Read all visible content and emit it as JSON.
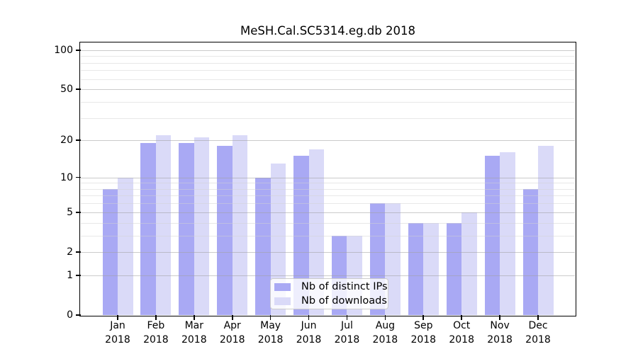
{
  "chart_data": {
    "type": "bar",
    "title": "MeSH.Cal.SC5314.eg.db 2018",
    "categories": [
      "Jan",
      "Feb",
      "Mar",
      "Apr",
      "May",
      "Jun",
      "Jul",
      "Aug",
      "Sep",
      "Oct",
      "Nov",
      "Dec"
    ],
    "category_second_line": "2018",
    "series": [
      {
        "name": "Nb of distinct IPs",
        "color": "#a9a9f4",
        "values": [
          8,
          19,
          19,
          18,
          10,
          15,
          3,
          6,
          4,
          4,
          15,
          8
        ]
      },
      {
        "name": "Nb of downloads",
        "color": "#dadaf8",
        "values": [
          10,
          22,
          21,
          22,
          13,
          17,
          3,
          6,
          4,
          5,
          16,
          18
        ]
      }
    ],
    "yscale": "log1p",
    "ylim": [
      0,
      113
    ],
    "yticks": [
      0,
      1,
      2,
      5,
      10,
      20,
      50,
      100
    ],
    "minor_yticks": [
      3,
      4,
      6,
      7,
      8,
      9,
      30,
      40,
      60,
      70,
      80,
      90
    ],
    "grid": true,
    "legend_position": "bottom-center",
    "colors": {
      "axis": "#000000",
      "major_grid": "#a0a0a0",
      "minor_grid": "#d2d2d2"
    }
  }
}
